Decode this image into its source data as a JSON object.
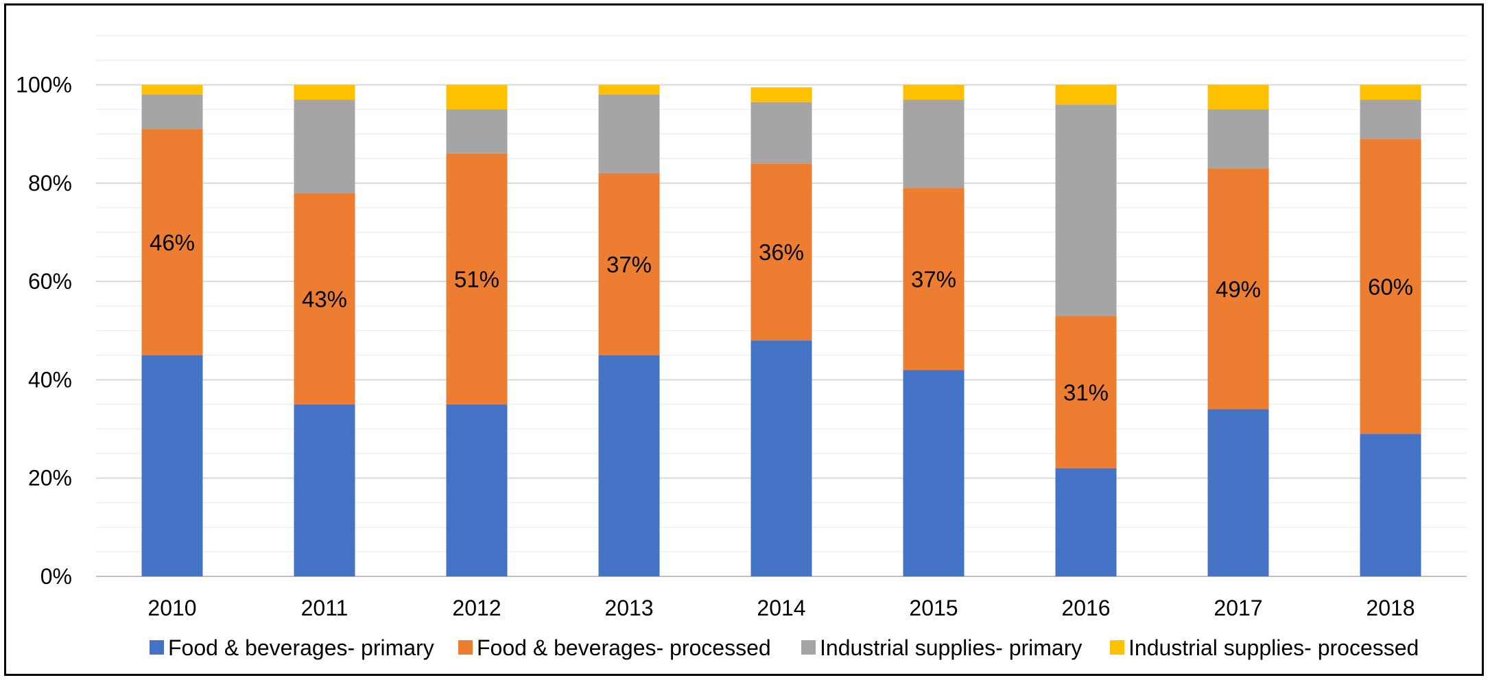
{
  "chart_data": {
    "type": "bar",
    "stacked": true,
    "categories": [
      "2010",
      "2011",
      "2012",
      "2013",
      "2014",
      "2015",
      "2016",
      "2017",
      "2018"
    ],
    "series": [
      {
        "name": "Food & beverages- primary",
        "color": "#4472C4",
        "values": [
          45,
          35,
          35,
          45,
          48,
          42,
          22,
          34,
          29
        ]
      },
      {
        "name": "Food & beverages- processed",
        "color": "#ED7D31",
        "values": [
          46,
          43,
          51,
          37,
          36,
          37,
          31,
          49,
          60
        ]
      },
      {
        "name": "Industrial supplies- primary",
        "color": "#A5A5A5",
        "values": [
          7,
          19,
          9,
          16,
          12.5,
          18,
          43,
          12,
          8
        ]
      },
      {
        "name": "Industrial supplies- processed",
        "color": "#FFC000",
        "values": [
          2,
          3,
          5,
          2,
          3,
          3,
          4,
          5,
          3
        ]
      }
    ],
    "data_labels": [
      "46%",
      "43%",
      "51%",
      "37%",
      "36%",
      "37%",
      "31%",
      "49%",
      "60%"
    ],
    "y_ticks": [
      "0%",
      "20%",
      "40%",
      "60%",
      "80%",
      "100%"
    ],
    "ylim": [
      0,
      110
    ],
    "grid": true,
    "legend_position": "bottom"
  }
}
